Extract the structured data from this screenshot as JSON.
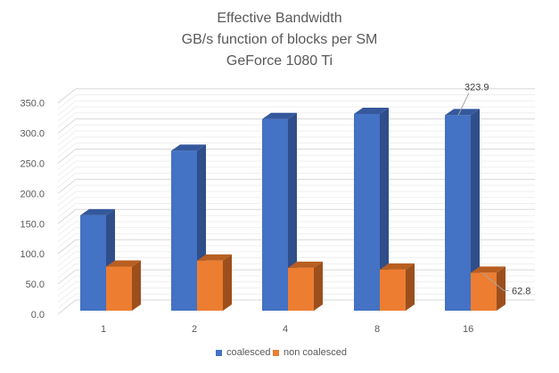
{
  "chart_data": {
    "type": "bar",
    "title": [
      "Effective Bandwidth",
      "GB/s function of blocks per SM",
      "GeForce 1080 Ti"
    ],
    "categories": [
      "1",
      "2",
      "4",
      "8",
      "16"
    ],
    "series": [
      {
        "name": "coalesced",
        "values": [
          158.0,
          265.0,
          317.5,
          326.0,
          323.9
        ],
        "color": "#4472C4",
        "side": "#2F4E8A",
        "top": "#35589C"
      },
      {
        "name": "non coalesced",
        "values": [
          73.0,
          83.0,
          71.0,
          68.0,
          62.8
        ],
        "color": "#ED7D31",
        "side": "#9C4F1C",
        "top": "#B85E22"
      }
    ],
    "data_labels": [
      {
        "series": 0,
        "index": 4,
        "text": "323.9"
      },
      {
        "series": 1,
        "index": 4,
        "text": "62.8"
      }
    ],
    "yticks": [
      "0.0",
      "50.0",
      "100.0",
      "150.0",
      "200.0",
      "250.0",
      "300.0",
      "350.0"
    ],
    "ylim": [
      0,
      350
    ],
    "grid": true,
    "style": "3d-column",
    "legend": "bottom",
    "xlabel": "",
    "ylabel": ""
  }
}
